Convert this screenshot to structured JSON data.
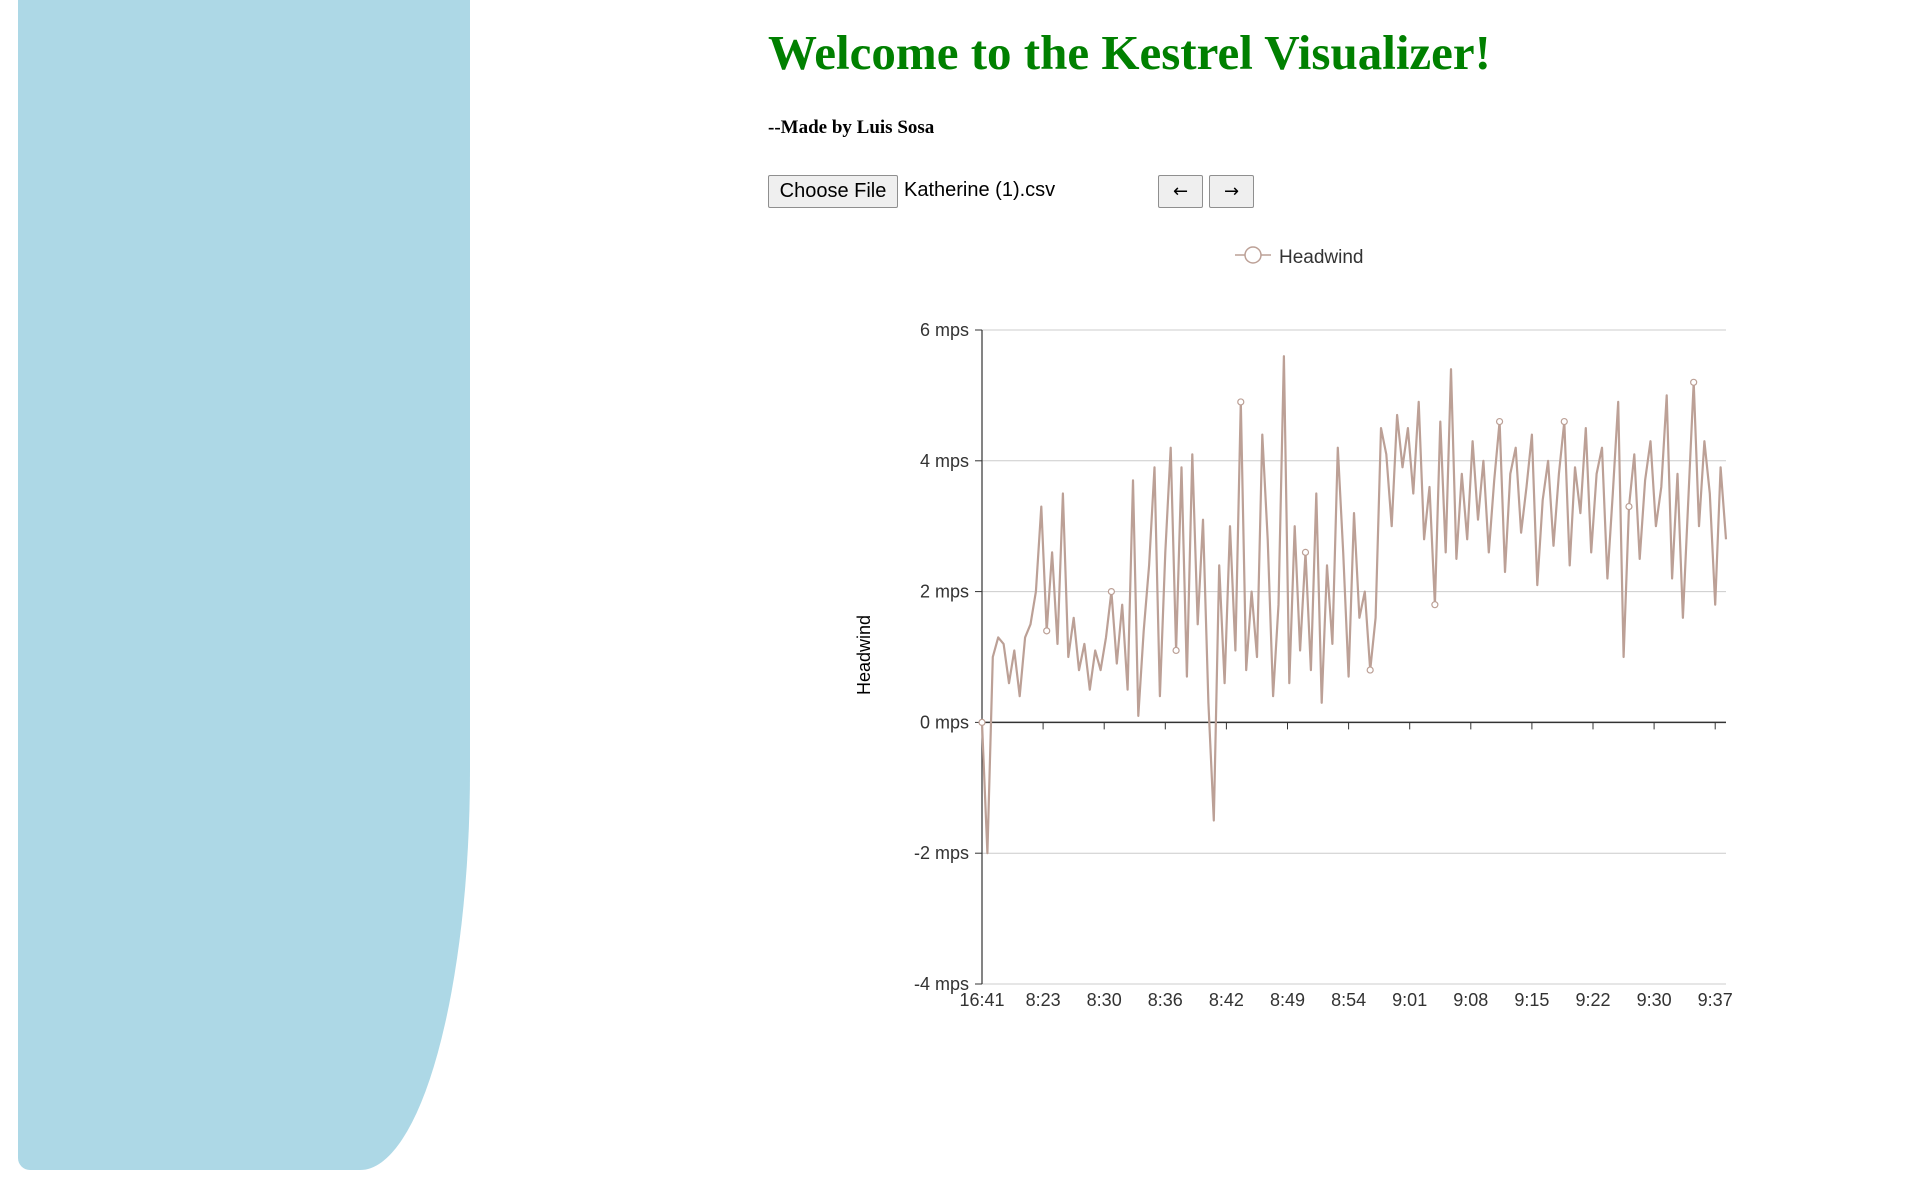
{
  "page": {
    "title": "Welcome to the Kestrel Visualizer!",
    "byline": "--Made by Luis Sosa"
  },
  "file_input": {
    "button_label": "Choose File",
    "file_name": "Katherine (1).csv"
  },
  "nav": {
    "prev_label": "←",
    "next_label": "→"
  },
  "colors": {
    "title": "#008000",
    "side_panel": "#add8e6",
    "series": "#bca096"
  },
  "chart_data": {
    "type": "line",
    "legend": [
      "Headwind"
    ],
    "legend_position": "top-center",
    "ylabel": "Headwind",
    "xlabel": "",
    "grid": true,
    "ylim": [
      -4,
      6
    ],
    "y_ticks": [
      -4,
      -2,
      0,
      2,
      4,
      6
    ],
    "y_tick_labels": [
      "-4 mps",
      "-2 mps",
      "0 mps",
      "2 mps",
      "4 mps",
      "6 mps"
    ],
    "x_tick_labels": [
      "16:41",
      "8:23",
      "8:30",
      "8:36",
      "8:42",
      "8:49",
      "8:54",
      "9:01",
      "9:08",
      "9:15",
      "9:22",
      "9:30",
      "9:37"
    ],
    "series": [
      {
        "name": "Headwind",
        "sample_interval_ticks": 0.0833,
        "values": [
          0.0,
          -2.0,
          1.0,
          1.3,
          1.2,
          0.6,
          1.1,
          0.4,
          1.3,
          1.5,
          2.0,
          3.3,
          1.4,
          2.6,
          1.2,
          3.5,
          1.0,
          1.6,
          0.8,
          1.2,
          0.5,
          1.1,
          0.8,
          1.3,
          2.0,
          0.9,
          1.8,
          0.5,
          3.7,
          0.1,
          1.4,
          2.4,
          3.9,
          0.4,
          2.6,
          4.2,
          1.1,
          3.9,
          0.7,
          4.1,
          1.5,
          3.1,
          0.3,
          -1.5,
          2.4,
          0.6,
          3.0,
          1.1,
          4.9,
          0.8,
          2.0,
          1.0,
          4.4,
          2.8,
          0.4,
          1.8,
          5.6,
          0.6,
          3.0,
          1.1,
          2.6,
          0.8,
          3.5,
          0.3,
          2.4,
          1.2,
          4.2,
          2.6,
          0.7,
          3.2,
          1.6,
          2.0,
          0.8,
          1.6,
          4.5,
          4.1,
          3.0,
          4.7,
          3.9,
          4.5,
          3.5,
          4.9,
          2.8,
          3.6,
          1.8,
          4.6,
          2.6,
          5.4,
          2.5,
          3.8,
          2.8,
          4.3,
          3.1,
          4.0,
          2.6,
          3.7,
          4.6,
          2.3,
          3.8,
          4.2,
          2.9,
          3.6,
          4.4,
          2.1,
          3.4,
          4.0,
          2.7,
          3.8,
          4.6,
          2.4,
          3.9,
          3.2,
          4.5,
          2.6,
          3.8,
          4.2,
          2.2,
          3.5,
          4.9,
          1.0,
          3.3,
          4.1,
          2.5,
          3.7,
          4.3,
          3.0,
          3.6,
          5.0,
          2.2,
          3.8,
          1.6,
          3.4,
          5.2,
          3.0,
          4.3,
          3.5,
          1.8,
          3.9,
          2.8
        ]
      }
    ]
  }
}
